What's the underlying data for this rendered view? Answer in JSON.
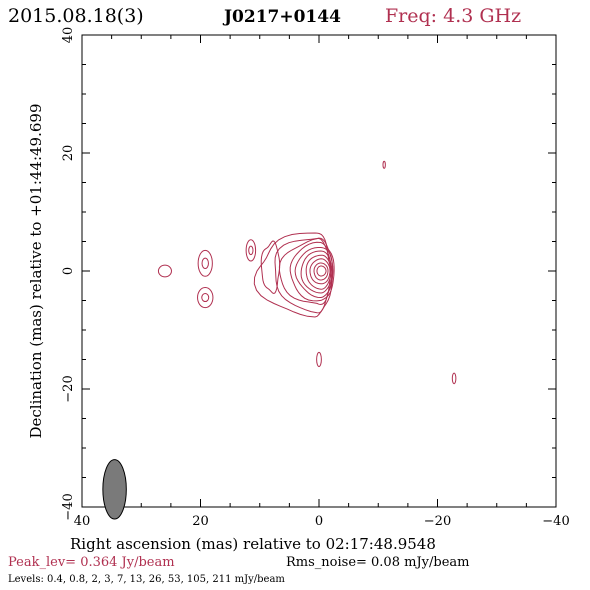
{
  "header": {
    "date": "2015.08.18(3)",
    "source": "J0217+0144",
    "frequency": "Freq: 4.3 GHz"
  },
  "footer": {
    "peak": "Peak_lev=  0.364 Jy/beam",
    "rms": "Rms_noise= 0.08 mJy/beam",
    "levels": "Levels: 0.4, 0.8,   2,   3,   7,  13,  26,  53, 105, 211 mJy/beam"
  },
  "colors": {
    "contour": "#b03050",
    "beam": "#7a7a7a",
    "accent": "#b03050"
  },
  "chart_data": {
    "type": "contour",
    "xlabel": "Right ascension (mas) relative to 02:17:48.9548",
    "ylabel": "Declination (mas) relative to +01:44:49.699",
    "xlim": [
      40,
      -40
    ],
    "ylim": [
      -40,
      40
    ],
    "xticks": [
      40,
      20,
      0,
      -20,
      -40
    ],
    "yticks": [
      -40,
      -20,
      0,
      20,
      40
    ],
    "xtick_labels": [
      "40",
      "20",
      "0",
      "−20",
      "−40"
    ],
    "ytick_labels": [
      "−40",
      "−20",
      "0",
      "20",
      "40"
    ],
    "levels_mJy": [
      0.4,
      0.8,
      2,
      3,
      7,
      13,
      26,
      53,
      105,
      211
    ],
    "peak_Jy_per_beam": 0.364,
    "rms_mJy_per_beam": 0.08,
    "core": {
      "x": 0,
      "y": 0
    },
    "beam": {
      "x": 34.5,
      "y": -37.0,
      "major": 4.2,
      "minor": 1.8,
      "pa_deg": 0
    },
    "components": [
      {
        "x": 26,
        "y": 0,
        "rx": 1.1,
        "ry": 1.0
      },
      {
        "x": 19.2,
        "y": 1.3,
        "rx": 1.2,
        "ry": 2.2
      },
      {
        "x": 19.2,
        "y": -4.5,
        "rx": 1.3,
        "ry": 1.7
      },
      {
        "x": 11.5,
        "y": 3.5,
        "rx": 0.8,
        "ry": 1.8
      },
      {
        "x": -11,
        "y": 18,
        "rx": 0.2,
        "ry": 0.6
      },
      {
        "x": 0,
        "y": -15,
        "rx": 0.4,
        "ry": 1.2
      },
      {
        "x": -22.8,
        "y": -18.2,
        "rx": 0.3,
        "ry": 0.9
      }
    ]
  }
}
